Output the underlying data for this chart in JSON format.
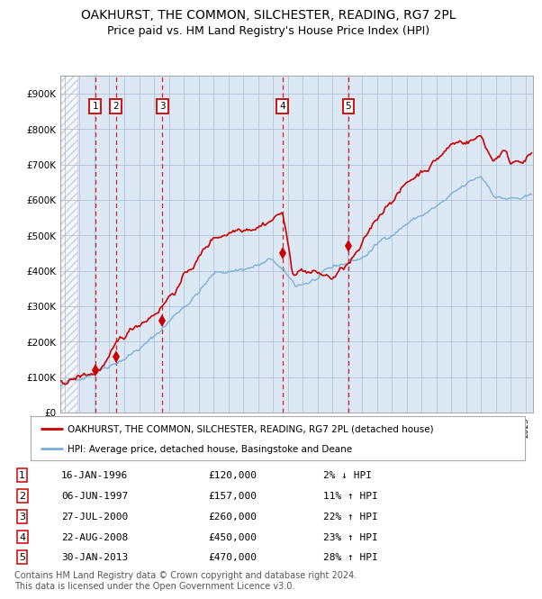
{
  "title": "OAKHURST, THE COMMON, SILCHESTER, READING, RG7 2PL",
  "subtitle": "Price paid vs. HM Land Registry's House Price Index (HPI)",
  "title_fontsize": 10,
  "subtitle_fontsize": 9,
  "background_color": "#dce9f5",
  "grid_color": "#aabbd0",
  "ylim": [
    0,
    950000
  ],
  "xlim_start": 1993.7,
  "xlim_end": 2025.5,
  "ylabel_ticks": [
    0,
    100000,
    200000,
    300000,
    400000,
    500000,
    600000,
    700000,
    800000,
    900000
  ],
  "ytick_labels": [
    "£0",
    "£100K",
    "£200K",
    "£300K",
    "£400K",
    "£500K",
    "£600K",
    "£700K",
    "£800K",
    "£900K"
  ],
  "sale_dates": [
    1996.04,
    1997.43,
    2000.57,
    2008.64,
    2013.08
  ],
  "sale_prices": [
    120000,
    157000,
    260000,
    450000,
    470000
  ],
  "sale_labels": [
    "1",
    "2",
    "3",
    "4",
    "5"
  ],
  "red_line_color": "#cc0000",
  "blue_line_color": "#7aaed6",
  "marker_color": "#cc0000",
  "dashed_line_color": "#cc0000",
  "legend_label_red": "OAKHURST, THE COMMON, SILCHESTER, READING, RG7 2PL (detached house)",
  "legend_label_blue": "HPI: Average price, detached house, Basingstoke and Deane",
  "table_data": [
    [
      "1",
      "16-JAN-1996",
      "£120,000",
      "2% ↓ HPI"
    ],
    [
      "2",
      "06-JUN-1997",
      "£157,000",
      "11% ↑ HPI"
    ],
    [
      "3",
      "27-JUL-2000",
      "£260,000",
      "22% ↑ HPI"
    ],
    [
      "4",
      "22-AUG-2008",
      "£450,000",
      "23% ↑ HPI"
    ],
    [
      "5",
      "30-JAN-2013",
      "£470,000",
      "28% ↑ HPI"
    ]
  ],
  "footnote": "Contains HM Land Registry data © Crown copyright and database right 2024.\nThis data is licensed under the Open Government Licence v3.0.",
  "footnote_fontsize": 7
}
